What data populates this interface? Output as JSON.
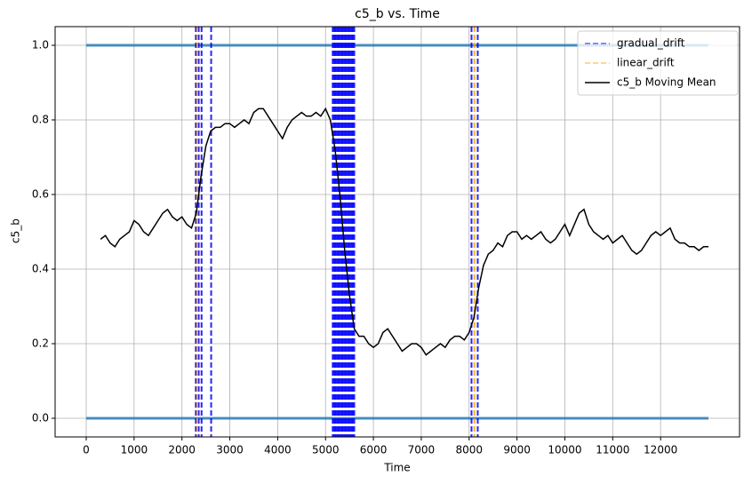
{
  "chart_data": {
    "type": "line",
    "title": "c5_b vs. Time",
    "xlabel": "Time",
    "ylabel": "c5_b",
    "xlim": [
      -650,
      13650
    ],
    "ylim": [
      -0.05,
      1.05
    ],
    "xticks": [
      0,
      1000,
      2000,
      3000,
      4000,
      5000,
      6000,
      7000,
      8000,
      9000,
      10000,
      11000,
      12000
    ],
    "yticks": [
      {
        "value": 0,
        "label": "0.0"
      },
      {
        "value": 0.2,
        "label": "0.2"
      },
      {
        "value": 0.4,
        "label": "0.4"
      },
      {
        "value": 0.6,
        "label": "0.6"
      },
      {
        "value": 0.8,
        "label": "0.8"
      },
      {
        "value": 1,
        "label": "1.0"
      }
    ],
    "grid": true,
    "legend": "upper right",
    "observations": {
      "color": "#1f77b4",
      "segments": [
        {
          "x": [
            0,
            13000
          ],
          "values": [
            0,
            0
          ]
        },
        {
          "x": [
            0,
            13000
          ],
          "values": [
            1,
            1
          ]
        }
      ]
    },
    "vlines": [
      {
        "name": "gradual_drift",
        "color": "#0000ff",
        "x": [
          2290,
          2350,
          2410,
          2610,
          5150,
          5175,
          5200,
          5225,
          5250,
          5275,
          5300,
          5325,
          5350,
          5375,
          5400,
          5425,
          5450,
          5475,
          5500,
          5525,
          5550,
          5575,
          5600,
          8050,
          8180
        ]
      },
      {
        "name": "linear_drift",
        "color": "#ffa500",
        "x": [
          2320,
          8110
        ]
      }
    ],
    "series": [
      {
        "name": "c5_b Moving Mean",
        "color": "#000000",
        "x": [
          300,
          400,
          500,
          600,
          700,
          800,
          900,
          1000,
          1100,
          1200,
          1300,
          1400,
          1500,
          1600,
          1700,
          1800,
          1900,
          2000,
          2100,
          2200,
          2300,
          2400,
          2500,
          2600,
          2700,
          2800,
          2900,
          3000,
          3100,
          3200,
          3300,
          3400,
          3500,
          3600,
          3700,
          3800,
          3900,
          4000,
          4100,
          4200,
          4300,
          4400,
          4500,
          4600,
          4700,
          4800,
          4900,
          5000,
          5100,
          5200,
          5300,
          5400,
          5500,
          5600,
          5700,
          5800,
          5900,
          6000,
          6100,
          6200,
          6300,
          6400,
          6500,
          6600,
          6700,
          6800,
          6900,
          7000,
          7100,
          7200,
          7300,
          7400,
          7500,
          7600,
          7700,
          7800,
          7900,
          8000,
          8100,
          8200,
          8300,
          8400,
          8500,
          8600,
          8700,
          8800,
          8900,
          9000,
          9100,
          9200,
          9300,
          9400,
          9500,
          9600,
          9700,
          9800,
          9900,
          10000,
          10100,
          10200,
          10300,
          10400,
          10500,
          10600,
          10700,
          10800,
          10900,
          11000,
          11100,
          11200,
          11300,
          11400,
          11500,
          11600,
          11700,
          11800,
          11900,
          12000,
          12100,
          12200,
          12300,
          12400,
          12500,
          12600,
          12700,
          12800,
          12900,
          13000
        ],
        "values": [
          0.48,
          0.49,
          0.47,
          0.46,
          0.48,
          0.49,
          0.5,
          0.53,
          0.52,
          0.5,
          0.49,
          0.51,
          0.53,
          0.55,
          0.56,
          0.54,
          0.53,
          0.54,
          0.52,
          0.51,
          0.55,
          0.65,
          0.73,
          0.77,
          0.78,
          0.78,
          0.79,
          0.79,
          0.78,
          0.79,
          0.8,
          0.79,
          0.82,
          0.83,
          0.83,
          0.81,
          0.79,
          0.77,
          0.75,
          0.78,
          0.8,
          0.81,
          0.82,
          0.81,
          0.81,
          0.82,
          0.81,
          0.83,
          0.8,
          0.72,
          0.6,
          0.45,
          0.33,
          0.24,
          0.22,
          0.22,
          0.2,
          0.19,
          0.2,
          0.23,
          0.24,
          0.22,
          0.2,
          0.18,
          0.19,
          0.2,
          0.2,
          0.19,
          0.17,
          0.18,
          0.19,
          0.2,
          0.19,
          0.21,
          0.22,
          0.22,
          0.21,
          0.23,
          0.27,
          0.35,
          0.41,
          0.44,
          0.45,
          0.47,
          0.46,
          0.49,
          0.5,
          0.5,
          0.48,
          0.49,
          0.48,
          0.49,
          0.5,
          0.48,
          0.47,
          0.48,
          0.5,
          0.52,
          0.49,
          0.52,
          0.55,
          0.56,
          0.52,
          0.5,
          0.49,
          0.48,
          0.49,
          0.47,
          0.48,
          0.49,
          0.47,
          0.45,
          0.44,
          0.45,
          0.47,
          0.49,
          0.5,
          0.49,
          0.5,
          0.51,
          0.48,
          0.47,
          0.47,
          0.46,
          0.46,
          0.45,
          0.46,
          0.46
        ]
      }
    ]
  }
}
